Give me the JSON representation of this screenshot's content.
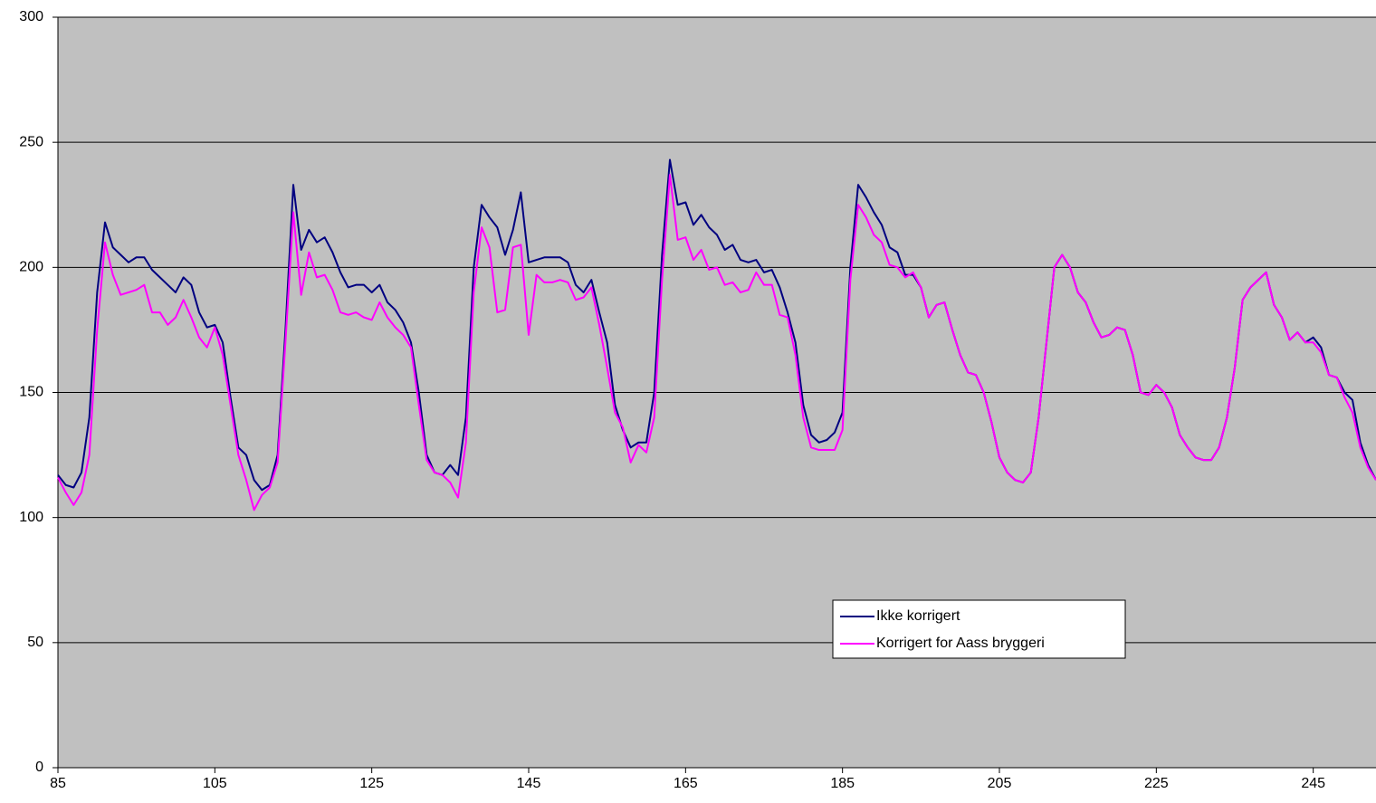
{
  "chart_data": {
    "type": "line",
    "x": [
      85,
      86,
      87,
      88,
      89,
      90,
      91,
      92,
      93,
      94,
      95,
      96,
      97,
      98,
      99,
      100,
      101,
      102,
      103,
      104,
      105,
      106,
      107,
      108,
      109,
      110,
      111,
      112,
      113,
      114,
      115,
      116,
      117,
      118,
      119,
      120,
      121,
      122,
      123,
      124,
      125,
      126,
      127,
      128,
      129,
      130,
      131,
      132,
      133,
      134,
      135,
      136,
      137,
      138,
      139,
      140,
      141,
      142,
      143,
      144,
      145,
      146,
      147,
      148,
      149,
      150,
      151,
      152,
      153,
      154,
      155,
      156,
      157,
      158,
      159,
      160,
      161,
      162,
      163,
      164,
      165,
      166,
      167,
      168,
      169,
      170,
      171,
      172,
      173,
      174,
      175,
      176,
      177,
      178,
      179,
      180,
      181,
      182,
      183,
      184,
      185,
      186,
      187,
      188,
      189,
      190,
      191,
      192,
      193,
      194,
      195,
      196,
      197,
      198,
      199,
      200,
      201,
      202,
      203,
      204,
      205,
      206,
      207,
      208,
      209,
      210,
      211,
      212,
      213,
      214,
      215,
      216,
      217,
      218,
      219,
      220,
      221,
      222,
      223,
      224,
      225,
      226,
      227,
      228,
      229,
      230,
      231,
      232,
      233,
      234,
      235,
      236,
      237,
      238,
      239,
      240,
      241,
      242,
      243,
      244,
      245,
      246,
      247,
      248,
      249,
      250,
      251,
      252,
      253
    ],
    "series": [
      {
        "name": "Ikke korrigert",
        "color": "#000080",
        "values": [
          117,
          113,
          112,
          118,
          140,
          190,
          218,
          208,
          205,
          202,
          204,
          204,
          199,
          196,
          193,
          190,
          196,
          193,
          182,
          176,
          177,
          170,
          148,
          128,
          125,
          115,
          111,
          113,
          125,
          175,
          233,
          207,
          215,
          210,
          212,
          206,
          198,
          192,
          193,
          193,
          190,
          193,
          186,
          183,
          178,
          170,
          150,
          125,
          118,
          117,
          121,
          117,
          140,
          200,
          225,
          220,
          216,
          205,
          215,
          230,
          202,
          203,
          204,
          204,
          204,
          202,
          193,
          190,
          195,
          182,
          170,
          145,
          135,
          128,
          130,
          130,
          150,
          205,
          243,
          225,
          226,
          217,
          221,
          216,
          213,
          207,
          209,
          203,
          202,
          203,
          198,
          199,
          192,
          182,
          170,
          145,
          133,
          130,
          131,
          134,
          142,
          200,
          233,
          228,
          222,
          217,
          208,
          206,
          197,
          197,
          192,
          180,
          185,
          186,
          175,
          165,
          158,
          157,
          150,
          138,
          124,
          118,
          115,
          114,
          118,
          140,
          170,
          200,
          205,
          200,
          190,
          186,
          178,
          172,
          173,
          176,
          175,
          165,
          150,
          149,
          153,
          150,
          144,
          133,
          128,
          124,
          123,
          123,
          128,
          140,
          160,
          187,
          192,
          195,
          198,
          185,
          180,
          171,
          174,
          170,
          172,
          168,
          157,
          156,
          150,
          147,
          130,
          121,
          115
        ]
      },
      {
        "name": "Korrigert for Aass bryggeri",
        "color": "#ff00ff",
        "values": [
          116,
          110,
          105,
          110,
          125,
          175,
          210,
          197,
          189,
          190,
          191,
          193,
          182,
          182,
          177,
          180,
          187,
          180,
          172,
          168,
          176,
          165,
          145,
          125,
          115,
          103,
          109,
          112,
          122,
          170,
          222,
          189,
          206,
          196,
          197,
          191,
          182,
          181,
          182,
          180,
          179,
          186,
          180,
          176,
          173,
          168,
          145,
          123,
          118,
          117,
          114,
          108,
          130,
          190,
          216,
          208,
          182,
          183,
          208,
          209,
          173,
          197,
          194,
          194,
          195,
          194,
          187,
          188,
          192,
          177,
          160,
          142,
          136,
          122,
          129,
          126,
          140,
          195,
          237,
          211,
          212,
          203,
          207,
          199,
          200,
          193,
          194,
          190,
          191,
          198,
          193,
          193,
          181,
          180,
          165,
          140,
          128,
          127,
          127,
          127,
          135,
          195,
          225,
          220,
          213,
          210,
          201,
          200,
          196,
          198,
          192,
          180,
          185,
          186,
          175,
          165,
          158,
          157,
          150,
          138,
          124,
          118,
          115,
          114,
          118,
          140,
          170,
          200,
          205,
          200,
          190,
          186,
          178,
          172,
          173,
          176,
          175,
          165,
          150,
          149,
          153,
          150,
          144,
          133,
          128,
          124,
          123,
          123,
          128,
          140,
          160,
          187,
          192,
          195,
          198,
          185,
          180,
          171,
          174,
          170,
          170,
          166,
          157,
          156,
          148,
          142,
          128,
          120,
          115
        ]
      }
    ],
    "xlim": [
      85,
      253
    ],
    "ylim": [
      0,
      300
    ],
    "xticks": [
      85,
      105,
      125,
      145,
      165,
      185,
      205,
      225,
      245
    ],
    "yticks": [
      0,
      50,
      100,
      150,
      200,
      250,
      300
    ],
    "grid": true,
    "background": "#c0c0c0"
  }
}
